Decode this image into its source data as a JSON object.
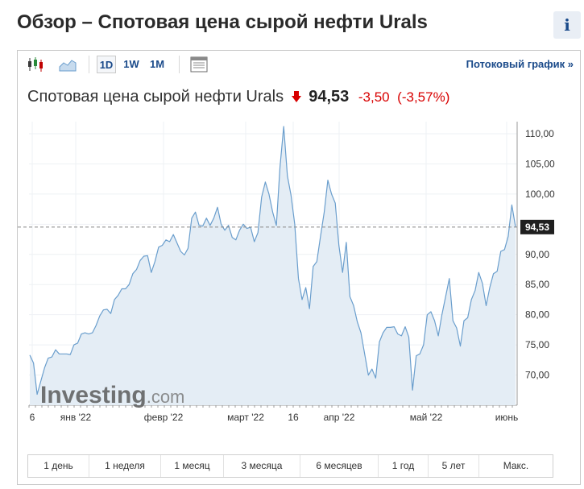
{
  "page": {
    "title": "Обзор – Спотовая цена сырой нефти Urals",
    "info_label": "i"
  },
  "toolbar": {
    "icons": [
      "candlestick-icon",
      "area-chart-icon",
      "table-icon"
    ],
    "timeframes": [
      "1D",
      "1W",
      "1M"
    ],
    "active_timeframe": "1D",
    "stream_link": "Потоковый график »"
  },
  "headline": {
    "name": "Спотовая цена сырой нефти Urals",
    "price": "94,53",
    "change": "-3,50",
    "change_pct": "(-3,57%)",
    "direction": "down"
  },
  "colors": {
    "line": "#6a9ecd",
    "area": "#e4edf5",
    "down": "#d80000",
    "brand_dark": "#5a5a5a",
    "brand_green": "#2a8a3a",
    "link": "#1a4a8a"
  },
  "watermark": {
    "brand": "Investing",
    "suffix": ".com"
  },
  "chart_data": {
    "type": "area",
    "title": "",
    "xlabel": "",
    "ylabel": "",
    "ylim": [
      65,
      112
    ],
    "yticks": [
      "110,00",
      "105,00",
      "100,00",
      "95,00",
      "90,00",
      "85,00",
      "80,00",
      "75,00",
      "70,00"
    ],
    "xticks": [
      "6",
      "янв '22",
      "февр '22",
      "март '22",
      "16",
      "апр '22",
      "май '22",
      "июнь"
    ],
    "current_value_label": "94,53",
    "grid": true,
    "series": [
      {
        "values": [
          73.3,
          72.0,
          66.8,
          69.0,
          71.2,
          72.8,
          73.0,
          74.2,
          73.5,
          73.5,
          73.5,
          73.4,
          75.0,
          75.3,
          76.8,
          77.0,
          76.8,
          77.0,
          78.2,
          79.8,
          80.8,
          80.9,
          80.2,
          82.5,
          83.2,
          84.3,
          84.3,
          85.0,
          86.8,
          87.5,
          89.0,
          89.7,
          89.8,
          87.0,
          88.8,
          91.2,
          91.5,
          92.4,
          92.1,
          93.3,
          91.9,
          90.5,
          89.9,
          91.0,
          96.0,
          97.0,
          94.8,
          94.7,
          96.0,
          94.8,
          96.0,
          97.8,
          95.0,
          94.0,
          94.8,
          92.8,
          92.4,
          94.0,
          95.0,
          94.3,
          94.5,
          92.1,
          93.6,
          99.5,
          102.0,
          100.0,
          97.0,
          94.8,
          104.5,
          111.2,
          103.0,
          99.8,
          95.0,
          86.0,
          82.5,
          84.5,
          81.0,
          88.0,
          88.8,
          93.0,
          97.0,
          102.3,
          100.0,
          98.5,
          91.5,
          87.0,
          92.0,
          83.0,
          81.5,
          78.8,
          77.0,
          73.5,
          70.0,
          71.0,
          69.5,
          75.5,
          77.0,
          77.9,
          77.9,
          78.0,
          76.8,
          76.5,
          78.0,
          76.3,
          67.5,
          73.2,
          73.5,
          75.0,
          80.0,
          80.5,
          79.0,
          76.5,
          80.0,
          83.0,
          86.0,
          79.0,
          77.8,
          74.8,
          79.0,
          79.5,
          82.5,
          84.0,
          87.0,
          85.2,
          81.5,
          84.5,
          86.8,
          87.2,
          90.5,
          90.8,
          93.0,
          98.2,
          94.53
        ]
      }
    ]
  },
  "periods": [
    "1 день",
    "1 неделя",
    "1 месяц",
    "3 месяца",
    "6 месяцев",
    "1 год",
    "5 лет",
    "Макс."
  ]
}
